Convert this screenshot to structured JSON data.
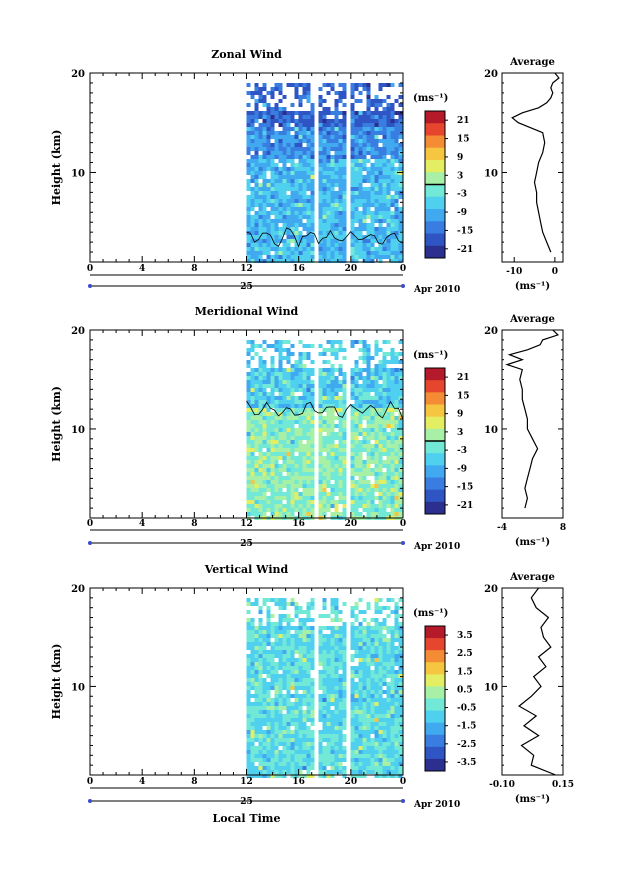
{
  "figure": {
    "date_label": "Apr 2010",
    "day_label": "25",
    "xlabel": "Local Time",
    "x_ticks": [
      "0",
      "4",
      "8",
      "12",
      "16",
      "20",
      "0"
    ],
    "height_label": "Height (km)",
    "height_ticks": [
      "10",
      "20"
    ],
    "units_label": "(ms⁻¹)",
    "avg_title": "Average",
    "palette": [
      "#2b2f8f",
      "#2f55c4",
      "#3a7de0",
      "#41a9ef",
      "#4fd0ef",
      "#72e8d6",
      "#a7f0a6",
      "#e3ee63",
      "#f6c640",
      "#f48b35",
      "#e5462d",
      "#b51a2b"
    ]
  },
  "chart_data": [
    {
      "type": "heatmap",
      "title": "Zonal Wind",
      "ylabel": "Height (km)",
      "ylim": [
        1,
        20
      ],
      "xlim": [
        0,
        24
      ],
      "data_start_hour": 12,
      "gaps_hours": [
        [
          17.2,
          17.5
        ],
        [
          19.4,
          19.7
        ]
      ],
      "colorbar": {
        "ticks": [
          "21",
          "15",
          "9",
          "3",
          "-3",
          "-9",
          "-15",
          "-21"
        ],
        "range": [
          -24,
          24
        ]
      },
      "average": {
        "title": "Average",
        "xlabel": "(ms⁻¹)",
        "x_ticks": [
          "-10",
          "0"
        ],
        "xlim": [
          -13,
          2
        ],
        "heights": [
          2,
          3,
          4,
          5,
          6,
          7,
          8,
          9,
          10,
          11,
          12,
          13,
          14,
          14.5,
          15,
          15.5,
          16,
          16.5,
          17,
          17.5,
          18,
          18.5,
          19,
          19.5,
          20
        ],
        "values": [
          -1,
          -2,
          -3,
          -3.5,
          -4,
          -4.5,
          -4.5,
          -5,
          -4.5,
          -4,
          -3,
          -2.5,
          -3,
          -6,
          -9,
          -10.5,
          -8,
          -4,
          -2,
          -1,
          -0.5,
          -1,
          -0.5,
          1,
          0
        ]
      }
    },
    {
      "type": "heatmap",
      "title": "Meridional Wind",
      "ylabel": "Height (km)",
      "ylim": [
        1,
        20
      ],
      "xlim": [
        0,
        24
      ],
      "data_start_hour": 12,
      "gaps_hours": [
        [
          17.2,
          17.5
        ],
        [
          19.4,
          19.7
        ]
      ],
      "colorbar": {
        "ticks": [
          "21",
          "15",
          "9",
          "3",
          "-3",
          "-9",
          "-15",
          "-21"
        ],
        "range": [
          -24,
          24
        ]
      },
      "average": {
        "title": "Average",
        "xlabel": "(ms⁻¹)",
        "x_ticks": [
          "-4",
          "8"
        ],
        "xlim": [
          -4,
          8
        ],
        "heights": [
          2,
          3,
          4,
          5,
          6,
          7,
          8,
          9,
          10,
          11,
          12,
          13,
          14,
          15,
          16,
          16.5,
          17,
          17.5,
          18,
          18.5,
          19,
          19.5,
          20
        ],
        "values": [
          0.5,
          1,
          0.5,
          1,
          1.5,
          2,
          3,
          2,
          1,
          1,
          0.5,
          0,
          0,
          -0.5,
          0,
          -3,
          0,
          -2.5,
          1,
          3.5,
          4,
          7,
          6
        ]
      }
    },
    {
      "type": "heatmap",
      "title": "Vertical Wind",
      "ylabel": "Height (km)",
      "ylim": [
        1,
        20
      ],
      "xlim": [
        0,
        24
      ],
      "data_start_hour": 12,
      "gaps_hours": [
        [
          17.2,
          17.5
        ],
        [
          19.4,
          19.7
        ]
      ],
      "colorbar": {
        "ticks": [
          "3.5",
          "2.5",
          "1.5",
          "0.5",
          "-0.5",
          "-1.5",
          "-2.5",
          "-3.5"
        ],
        "range": [
          -4,
          4
        ]
      },
      "average": {
        "title": "Average",
        "xlabel": "(ms⁻¹)",
        "x_ticks": [
          "-0.10",
          "0.15"
        ],
        "xlim": [
          -0.1,
          0.15
        ],
        "heights": [
          1,
          2,
          3,
          4,
          5,
          6,
          7,
          8,
          9,
          10,
          11,
          12,
          13,
          14,
          15,
          16,
          17,
          18,
          19,
          20
        ],
        "values": [
          0.12,
          0.02,
          0.03,
          -0.02,
          0.05,
          -0.01,
          0.04,
          -0.03,
          0.02,
          0.06,
          0.03,
          0.08,
          0.05,
          0.1,
          0.07,
          0.06,
          0.09,
          0.04,
          0.02,
          0.05
        ]
      }
    }
  ]
}
